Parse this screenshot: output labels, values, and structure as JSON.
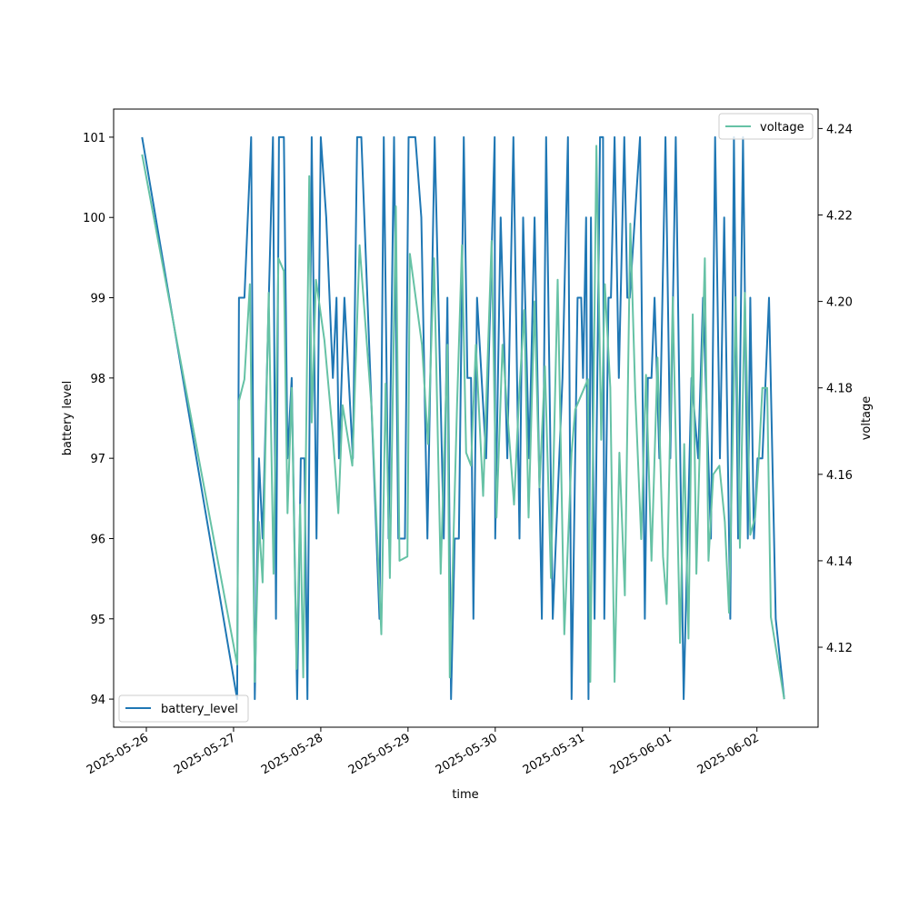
{
  "chart_data": {
    "type": "line",
    "xlabel": "time",
    "ylabel": "battery level",
    "y2label": "voltage",
    "grid": false,
    "x_ticks": [
      "2025-05-26",
      "2025-05-27",
      "2025-05-28",
      "2025-05-29",
      "2025-05-30",
      "2025-05-31",
      "2025-06-01",
      "2025-06-02"
    ],
    "y_ticks": [
      94,
      95,
      96,
      97,
      98,
      99,
      100,
      101
    ],
    "y2_ticks": [
      4.12,
      4.14,
      4.16,
      4.18,
      4.2,
      4.22,
      4.24
    ],
    "ylim": [
      93.65,
      101.35
    ],
    "y2lim": [
      4.1015,
      4.2445
    ],
    "xlim_days": [
      "2025-05-25 15:00",
      "2025-06-02 16:50"
    ],
    "colors": {
      "battery_level": "#1f77b4",
      "voltage": "#66c2a5"
    },
    "legend_battery": {
      "label": "battery_level",
      "position": "lower-left"
    },
    "legend_voltage": {
      "label": "voltage",
      "position": "upper-right"
    },
    "series": [
      {
        "name": "battery_level",
        "axis": "left",
        "points": [
          [
            "2025-05-25 22:50",
            101
          ],
          [
            "2025-05-27 01:00",
            94
          ],
          [
            "2025-05-27 01:30",
            99
          ],
          [
            "2025-05-27 02:30",
            99
          ],
          [
            "2025-05-27 03:00",
            99
          ],
          [
            "2025-05-27 04:50",
            101
          ],
          [
            "2025-05-27 05:50",
            94
          ],
          [
            "2025-05-27 07:00",
            97
          ],
          [
            "2025-05-27 08:00",
            96
          ],
          [
            "2025-05-27 10:50",
            101
          ],
          [
            "2025-05-27 11:40",
            95
          ],
          [
            "2025-05-27 12:30",
            101
          ],
          [
            "2025-05-27 13:50",
            101
          ],
          [
            "2025-05-27 14:50",
            97
          ],
          [
            "2025-05-27 16:00",
            98
          ],
          [
            "2025-05-27 17:30",
            94
          ],
          [
            "2025-05-27 18:30",
            97
          ],
          [
            "2025-05-27 19:30",
            97
          ],
          [
            "2025-05-27 20:20",
            94
          ],
          [
            "2025-05-27 21:30",
            101
          ],
          [
            "2025-05-27 22:50",
            96
          ],
          [
            "2025-05-28 00:00",
            101
          ],
          [
            "2025-05-28 01:30",
            100
          ],
          [
            "2025-05-28 03:20",
            98
          ],
          [
            "2025-05-28 04:20",
            99
          ],
          [
            "2025-05-28 05:00",
            97
          ],
          [
            "2025-05-28 06:30",
            99
          ],
          [
            "2025-05-28 08:50",
            97
          ],
          [
            "2025-05-28 10:00",
            101
          ],
          [
            "2025-05-28 11:10",
            101
          ],
          [
            "2025-05-28 16:10",
            95
          ],
          [
            "2025-05-28 17:20",
            101
          ],
          [
            "2025-05-28 18:40",
            96
          ],
          [
            "2025-05-28 20:10",
            101
          ],
          [
            "2025-05-28 21:20",
            96
          ],
          [
            "2025-05-28 23:10",
            96
          ],
          [
            "2025-05-29 00:10",
            101
          ],
          [
            "2025-05-29 02:00",
            101
          ],
          [
            "2025-05-29 03:40",
            100
          ],
          [
            "2025-05-29 05:20",
            96
          ],
          [
            "2025-05-29 07:20",
            101
          ],
          [
            "2025-05-29 09:50",
            96
          ],
          [
            "2025-05-29 10:50",
            99
          ],
          [
            "2025-05-29 11:50",
            94
          ],
          [
            "2025-05-29 12:50",
            96
          ],
          [
            "2025-05-29 14:00",
            96
          ],
          [
            "2025-05-29 15:20",
            101
          ],
          [
            "2025-05-29 16:20",
            98
          ],
          [
            "2025-05-29 17:20",
            98
          ],
          [
            "2025-05-29 18:00",
            95
          ],
          [
            "2025-05-29 19:00",
            99
          ],
          [
            "2025-05-29 21:30",
            97
          ],
          [
            "2025-05-29 23:50",
            101
          ],
          [
            "2025-05-30 00:00",
            96
          ],
          [
            "2025-05-30 01:30",
            100
          ],
          [
            "2025-05-30 03:20",
            97
          ],
          [
            "2025-05-30 05:00",
            101
          ],
          [
            "2025-05-30 06:40",
            96
          ],
          [
            "2025-05-30 07:40",
            100
          ],
          [
            "2025-05-30 09:20",
            97
          ],
          [
            "2025-05-30 10:50",
            100
          ],
          [
            "2025-05-30 12:50",
            95
          ],
          [
            "2025-05-30 14:00",
            101
          ],
          [
            "2025-05-30 15:50",
            95
          ],
          [
            "2025-05-30 18:30",
            98
          ],
          [
            "2025-05-30 20:00",
            101
          ],
          [
            "2025-05-30 21:00",
            94
          ],
          [
            "2025-05-30 22:40",
            99
          ],
          [
            "2025-05-30 23:40",
            99
          ],
          [
            "2025-05-31 00:10",
            98
          ],
          [
            "2025-05-31 01:00",
            100
          ],
          [
            "2025-05-31 01:40",
            94
          ],
          [
            "2025-05-31 02:20",
            100
          ],
          [
            "2025-05-31 03:20",
            95
          ],
          [
            "2025-05-31 04:50",
            101
          ],
          [
            "2025-05-31 05:40",
            101
          ],
          [
            "2025-05-31 06:00",
            95
          ],
          [
            "2025-05-31 07:10",
            99
          ],
          [
            "2025-05-31 07:50",
            99
          ],
          [
            "2025-05-31 08:50",
            101
          ],
          [
            "2025-05-31 10:00",
            98
          ],
          [
            "2025-05-31 11:30",
            101
          ],
          [
            "2025-05-31 12:20",
            99
          ],
          [
            "2025-05-31 13:00",
            99
          ],
          [
            "2025-05-31 15:50",
            101
          ],
          [
            "2025-05-31 17:10",
            95
          ],
          [
            "2025-05-31 18:00",
            98
          ],
          [
            "2025-05-31 19:00",
            98
          ],
          [
            "2025-05-31 19:50",
            99
          ],
          [
            "2025-05-31 21:10",
            97
          ],
          [
            "2025-05-31 22:50",
            101
          ],
          [
            "2025-06-01 00:10",
            97
          ],
          [
            "2025-06-01 01:40",
            101
          ],
          [
            "2025-06-01 03:50",
            94
          ],
          [
            "2025-06-01 06:00",
            98
          ],
          [
            "2025-06-01 07:50",
            97
          ],
          [
            "2025-06-01 09:10",
            99
          ],
          [
            "2025-06-01 11:20",
            96
          ],
          [
            "2025-06-01 12:30",
            101
          ],
          [
            "2025-06-01 13:50",
            97
          ],
          [
            "2025-06-01 15:00",
            100
          ],
          [
            "2025-06-01 16:40",
            95
          ],
          [
            "2025-06-01 17:40",
            101
          ],
          [
            "2025-06-01 18:50",
            96
          ],
          [
            "2025-06-01 20:10",
            101
          ],
          [
            "2025-06-01 21:30",
            96
          ],
          [
            "2025-06-01 22:10",
            99
          ],
          [
            "2025-06-01 23:10",
            96
          ],
          [
            "2025-06-02 00:10",
            97
          ],
          [
            "2025-06-02 01:30",
            97
          ],
          [
            "2025-06-02 03:20",
            99
          ],
          [
            "2025-06-02 05:10",
            95
          ],
          [
            "2025-06-02 07:30",
            94
          ]
        ]
      },
      {
        "name": "voltage",
        "axis": "right",
        "points": [
          [
            "2025-05-25 22:50",
            4.234
          ],
          [
            "2025-05-27 01:00",
            4.116
          ],
          [
            "2025-05-27 01:30",
            4.177
          ],
          [
            "2025-05-27 03:00",
            4.182
          ],
          [
            "2025-05-27 04:30",
            4.204
          ],
          [
            "2025-05-27 05:50",
            4.112
          ],
          [
            "2025-05-27 07:00",
            4.149
          ],
          [
            "2025-05-27 08:00",
            4.135
          ],
          [
            "2025-05-27 09:40",
            4.202
          ],
          [
            "2025-05-27 11:00",
            4.137
          ],
          [
            "2025-05-27 12:20",
            4.21
          ],
          [
            "2025-05-27 13:50",
            4.207
          ],
          [
            "2025-05-27 14:50",
            4.151
          ],
          [
            "2025-05-27 16:00",
            4.18
          ],
          [
            "2025-05-27 17:20",
            4.115
          ],
          [
            "2025-05-27 18:20",
            4.153
          ],
          [
            "2025-05-27 19:10",
            4.113
          ],
          [
            "2025-05-27 20:50",
            4.229
          ],
          [
            "2025-05-27 21:30",
            4.172
          ],
          [
            "2025-05-27 22:40",
            4.205
          ],
          [
            "2025-05-28 01:00",
            4.191
          ],
          [
            "2025-05-28 03:20",
            4.169
          ],
          [
            "2025-05-28 04:50",
            4.151
          ],
          [
            "2025-05-28 06:00",
            4.176
          ],
          [
            "2025-05-28 08:40",
            4.162
          ],
          [
            "2025-05-28 10:40",
            4.213
          ],
          [
            "2025-05-28 14:00",
            4.175
          ],
          [
            "2025-05-28 16:40",
            4.123
          ],
          [
            "2025-05-28 17:50",
            4.181
          ],
          [
            "2025-05-28 19:00",
            4.136
          ],
          [
            "2025-05-28 20:40",
            4.222
          ],
          [
            "2025-05-28 21:40",
            4.14
          ],
          [
            "2025-05-28 23:50",
            4.141
          ],
          [
            "2025-05-29 00:30",
            4.211
          ],
          [
            "2025-05-29 03:50",
            4.19
          ],
          [
            "2025-05-29 05:30",
            4.167
          ],
          [
            "2025-05-29 07:10",
            4.21
          ],
          [
            "2025-05-29 09:00",
            4.137
          ],
          [
            "2025-05-29 10:50",
            4.19
          ],
          [
            "2025-05-29 11:30",
            4.113
          ],
          [
            "2025-05-29 13:30",
            4.176
          ],
          [
            "2025-05-29 14:50",
            4.213
          ],
          [
            "2025-05-29 16:00",
            4.165
          ],
          [
            "2025-05-29 17:20",
            4.162
          ],
          [
            "2025-05-29 18:40",
            4.19
          ],
          [
            "2025-05-29 20:40",
            4.155
          ],
          [
            "2025-05-29 23:00",
            4.214
          ],
          [
            "2025-05-30 00:20",
            4.15
          ],
          [
            "2025-05-30 02:00",
            4.19
          ],
          [
            "2025-05-30 05:10",
            4.153
          ],
          [
            "2025-05-30 06:40",
            4.18
          ],
          [
            "2025-05-30 08:00",
            4.198
          ],
          [
            "2025-05-30 09:10",
            4.15
          ],
          [
            "2025-05-30 10:50",
            4.2
          ],
          [
            "2025-05-30 12:10",
            4.157
          ],
          [
            "2025-05-30 13:40",
            4.185
          ],
          [
            "2025-05-30 15:20",
            4.136
          ],
          [
            "2025-05-30 17:10",
            4.205
          ],
          [
            "2025-05-30 19:00",
            4.123
          ],
          [
            "2025-05-30 21:00",
            4.165
          ],
          [
            "2025-05-30 22:00",
            4.175
          ],
          [
            "2025-05-31 01:30",
            4.182
          ],
          [
            "2025-05-31 02:10",
            4.112
          ],
          [
            "2025-05-31 03:50",
            4.236
          ],
          [
            "2025-05-31 05:10",
            4.168
          ],
          [
            "2025-05-31 06:10",
            4.204
          ],
          [
            "2025-05-31 07:40",
            4.18
          ],
          [
            "2025-05-31 08:50",
            4.112
          ],
          [
            "2025-05-31 10:10",
            4.165
          ],
          [
            "2025-05-31 11:40",
            4.132
          ],
          [
            "2025-05-31 13:10",
            4.218
          ],
          [
            "2025-05-31 14:30",
            4.179
          ],
          [
            "2025-05-31 16:10",
            4.145
          ],
          [
            "2025-05-31 17:30",
            4.183
          ],
          [
            "2025-05-31 19:00",
            4.14
          ],
          [
            "2025-05-31 20:40",
            4.187
          ],
          [
            "2025-05-31 22:10",
            4.141
          ],
          [
            "2025-05-31 23:10",
            4.13
          ],
          [
            "2025-06-01 00:50",
            4.201
          ],
          [
            "2025-06-01 02:50",
            4.121
          ],
          [
            "2025-06-01 04:00",
            4.167
          ],
          [
            "2025-06-01 05:10",
            4.122
          ],
          [
            "2025-06-01 06:20",
            4.197
          ],
          [
            "2025-06-01 07:20",
            4.137
          ],
          [
            "2025-06-01 09:40",
            4.21
          ],
          [
            "2025-06-01 10:40",
            4.14
          ],
          [
            "2025-06-01 12:00",
            4.16
          ],
          [
            "2025-06-01 13:40",
            4.162
          ],
          [
            "2025-06-01 15:10",
            4.149
          ],
          [
            "2025-06-01 16:20",
            4.128
          ],
          [
            "2025-06-01 18:10",
            4.201
          ],
          [
            "2025-06-01 19:20",
            4.143
          ],
          [
            "2025-06-01 20:40",
            4.202
          ],
          [
            "2025-06-01 22:10",
            4.146
          ],
          [
            "2025-06-01 23:30",
            4.15
          ],
          [
            "2025-06-02 00:40",
            4.166
          ],
          [
            "2025-06-02 01:30",
            4.18
          ],
          [
            "2025-06-02 02:50",
            4.18
          ],
          [
            "2025-06-02 03:50",
            4.127
          ],
          [
            "2025-06-02 07:30",
            4.108
          ]
        ]
      }
    ]
  }
}
